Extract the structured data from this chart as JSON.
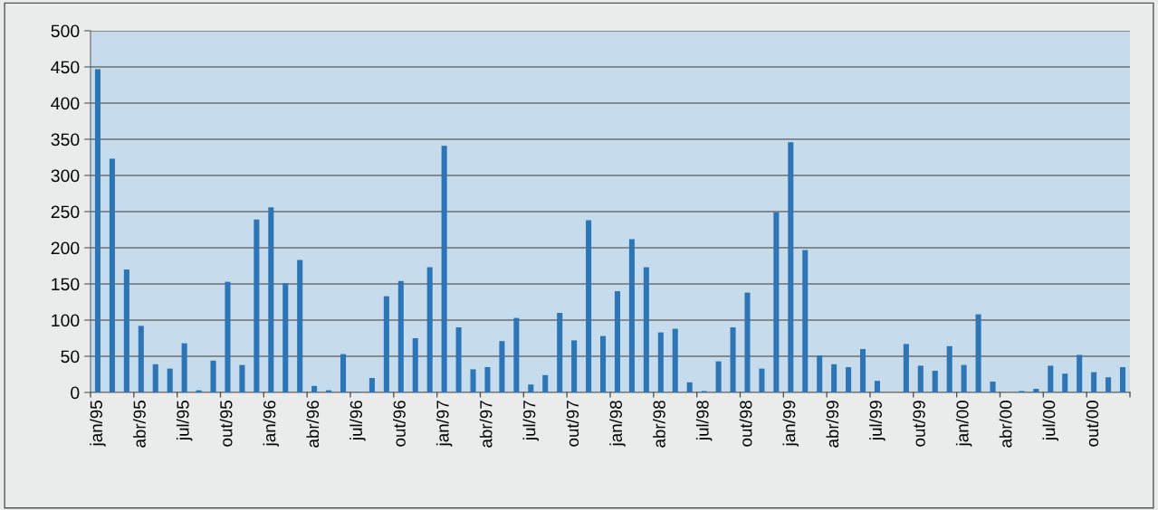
{
  "chart_data": {
    "type": "bar",
    "categories": [
      "jan/95",
      null,
      null,
      "abr/95",
      null,
      null,
      "jul/95",
      null,
      null,
      "out/95",
      null,
      null,
      "jan/96",
      null,
      null,
      "abr/96",
      null,
      null,
      "jul/96",
      null,
      null,
      "out/96",
      null,
      null,
      "jan/97",
      null,
      null,
      "abr/97",
      null,
      null,
      "jul/97",
      null,
      null,
      "out/97",
      null,
      null,
      "jan/98",
      null,
      null,
      "abr/98",
      null,
      null,
      "jul/98",
      null,
      null,
      "out/98",
      null,
      null,
      "jan/99",
      null,
      null,
      "abr/99",
      null,
      null,
      "jul/99",
      null,
      null,
      "out/99",
      null,
      null,
      "jan/00",
      null,
      null,
      "abr/00",
      null,
      null,
      "jul/00",
      null,
      null,
      "out/00",
      null,
      null
    ],
    "values": [
      447,
      323,
      170,
      92,
      39,
      33,
      68,
      3,
      44,
      153,
      38,
      239,
      256,
      151,
      183,
      9,
      3,
      53,
      1,
      20,
      133,
      154,
      75,
      173,
      341,
      90,
      32,
      35,
      71,
      103,
      11,
      24,
      110,
      72,
      238,
      78,
      140,
      212,
      173,
      83,
      88,
      14,
      2,
      43,
      90,
      138,
      33,
      249,
      346,
      197,
      51,
      39,
      35,
      60,
      16,
      0,
      67,
      37,
      30,
      64,
      38,
      108,
      15,
      0,
      2,
      5,
      37,
      26,
      52,
      28,
      21,
      35
    ],
    "color": "#2e75b6",
    "ylim": [
      0,
      500
    ],
    "yticks": [
      0,
      50,
      100,
      150,
      200,
      250,
      300,
      350,
      400,
      450,
      500
    ],
    "grid": "y"
  }
}
